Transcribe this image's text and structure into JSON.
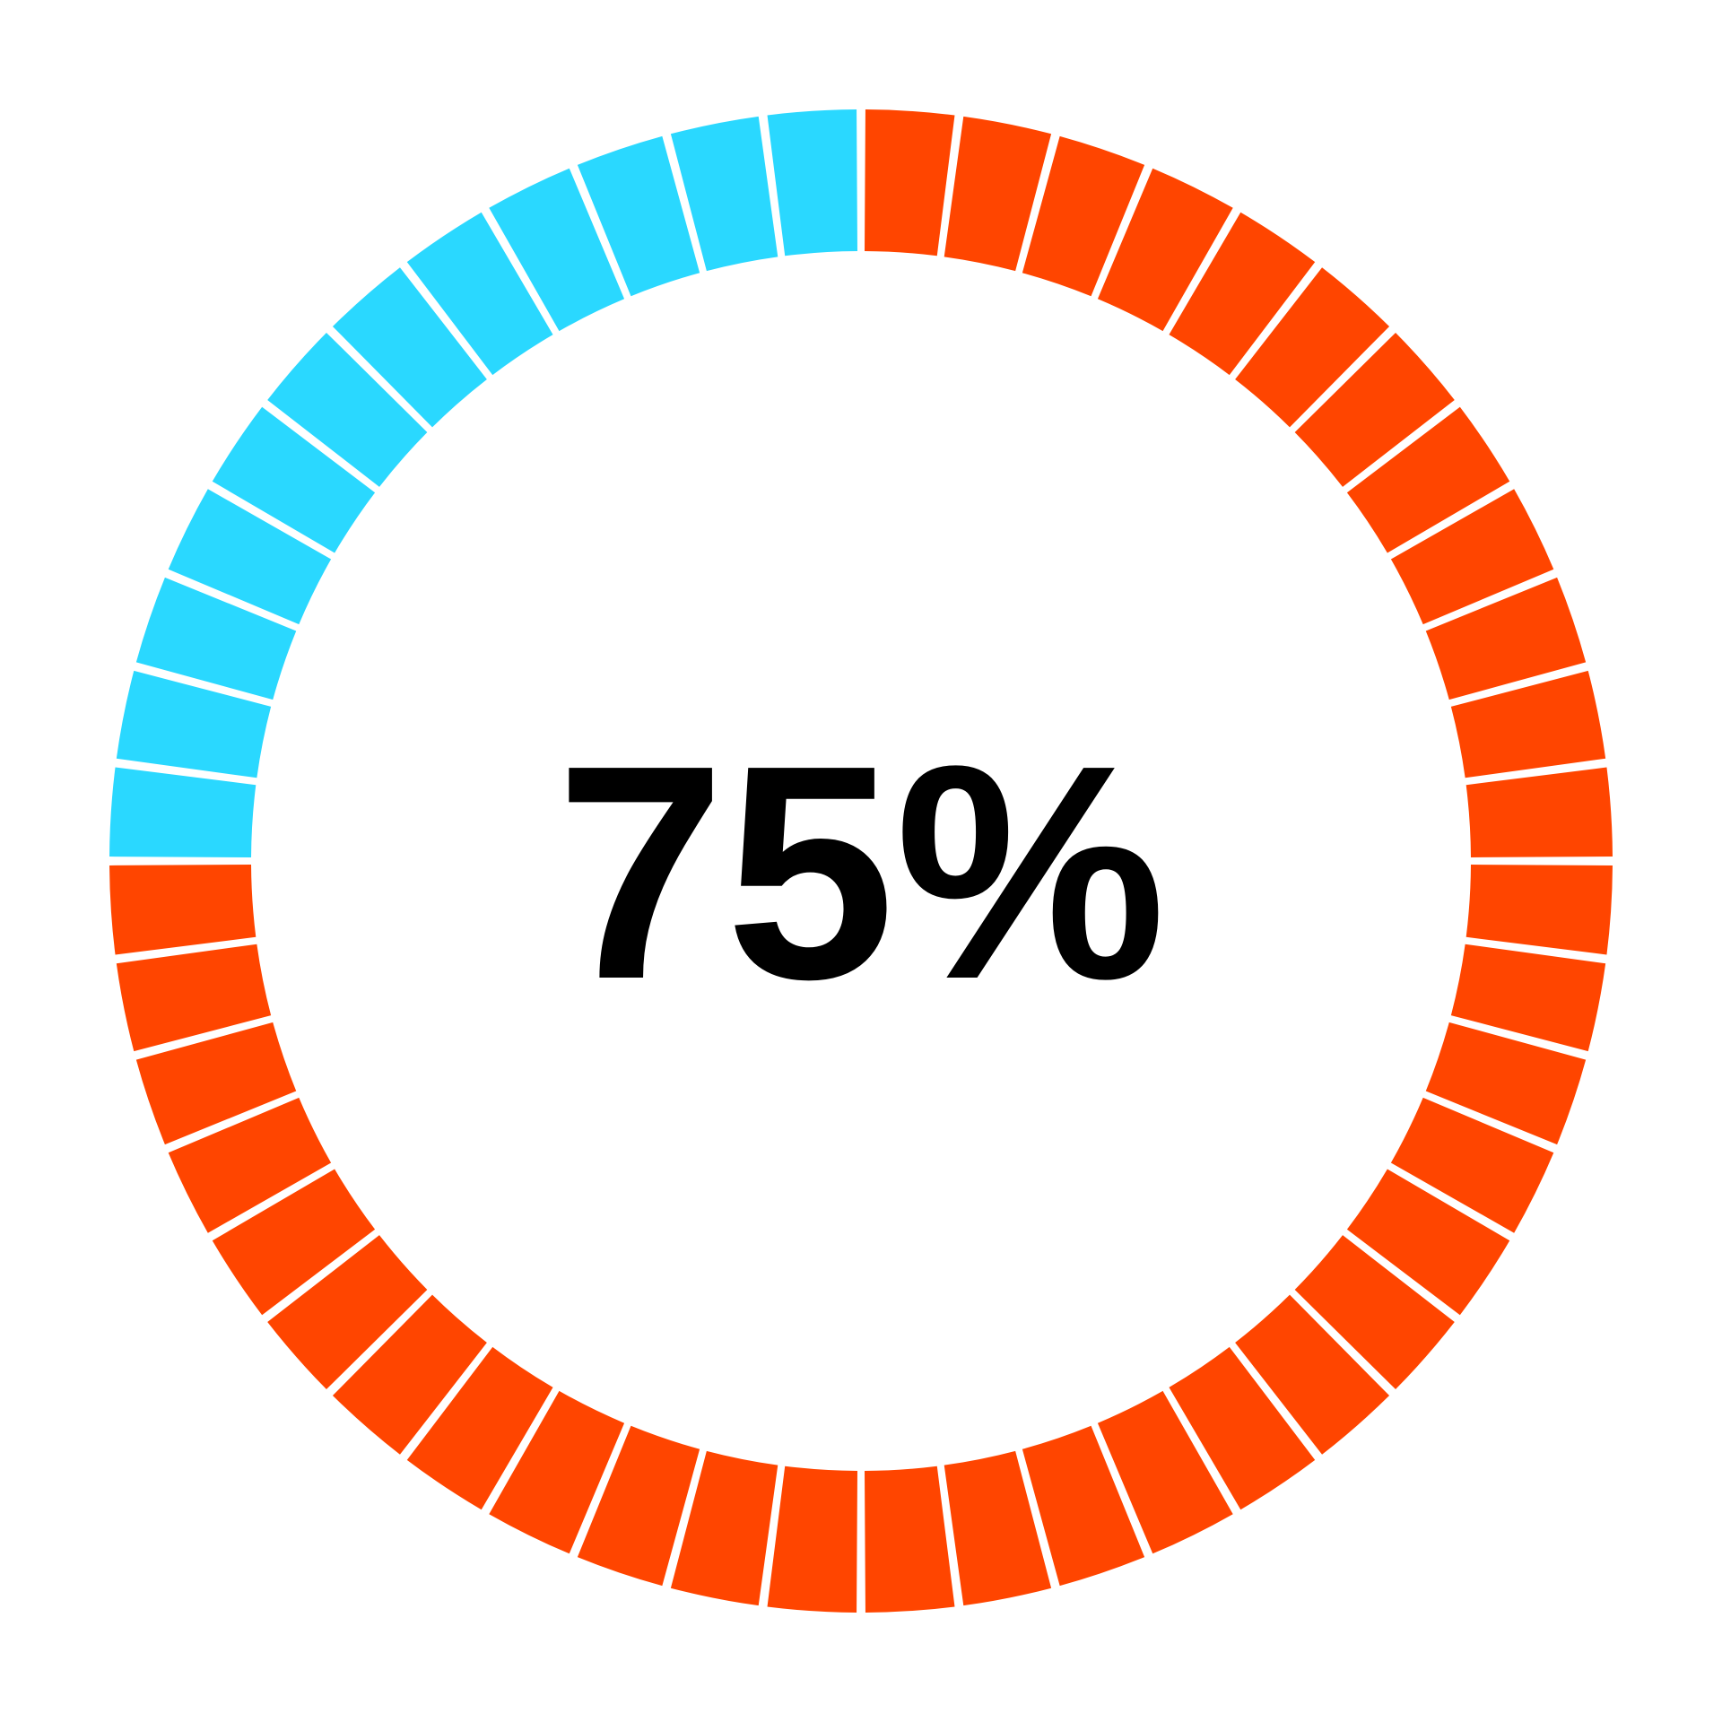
{
  "chart_data": {
    "type": "pie",
    "style": "segmented-donut",
    "value": 75,
    "unit": "%",
    "label": "75%",
    "segments_total": 48,
    "segments_filled": 36,
    "start": "top",
    "direction": "clockwise",
    "colors": {
      "filled": "#FF4500",
      "remaining": "#2AD8FF",
      "text": "#000000",
      "background": "#FFFFFF"
    }
  }
}
